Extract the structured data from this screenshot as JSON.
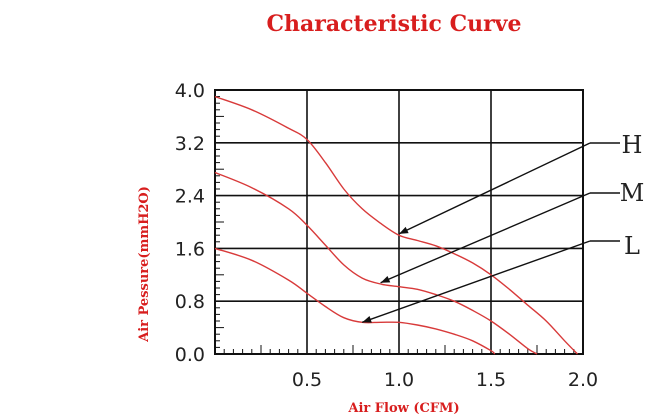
{
  "chart_data": {
    "type": "line",
    "title": "Characteristic Curve",
    "xlabel": "Air Flow (CFM)",
    "ylabel": "Air Pessure(mmH2O)",
    "xlim": [
      0,
      2.0
    ],
    "ylim": [
      0,
      4.0
    ],
    "x_ticks": [
      "0.5",
      "1.0",
      "1.5",
      "2.0"
    ],
    "y_ticks": [
      "0.0",
      "0.8",
      "1.6",
      "2.4",
      "3.2",
      "4.0"
    ],
    "grid": true,
    "series": [
      {
        "name": "H",
        "x": [
          0,
          0.2,
          0.4,
          0.5,
          0.6,
          0.7,
          0.8,
          0.9,
          1.0,
          1.1,
          1.2,
          1.3,
          1.4,
          1.5,
          1.6,
          1.7,
          1.8,
          1.9,
          1.97
        ],
        "y": [
          3.9,
          3.7,
          3.42,
          3.25,
          2.9,
          2.5,
          2.2,
          1.98,
          1.8,
          1.72,
          1.64,
          1.52,
          1.38,
          1.2,
          0.98,
          0.74,
          0.5,
          0.2,
          0.0
        ]
      },
      {
        "name": "M",
        "x": [
          0,
          0.2,
          0.4,
          0.5,
          0.6,
          0.7,
          0.8,
          0.9,
          1.0,
          1.1,
          1.2,
          1.3,
          1.4,
          1.5,
          1.6,
          1.7,
          1.75
        ],
        "y": [
          2.75,
          2.52,
          2.2,
          1.95,
          1.65,
          1.35,
          1.15,
          1.06,
          1.02,
          0.98,
          0.9,
          0.8,
          0.66,
          0.5,
          0.3,
          0.08,
          0.0
        ]
      },
      {
        "name": "L",
        "x": [
          0,
          0.2,
          0.4,
          0.5,
          0.6,
          0.7,
          0.8,
          0.9,
          1.0,
          1.1,
          1.2,
          1.3,
          1.4,
          1.5,
          1.52
        ],
        "y": [
          1.6,
          1.42,
          1.12,
          0.92,
          0.72,
          0.55,
          0.48,
          0.48,
          0.48,
          0.44,
          0.38,
          0.3,
          0.2,
          0.05,
          0.0
        ]
      }
    ],
    "callouts": [
      {
        "label": "H",
        "from": [
          1.0,
          1.82
        ]
      },
      {
        "label": "M",
        "from": [
          0.9,
          1.08
        ]
      },
      {
        "label": "L",
        "from": [
          0.8,
          0.48
        ]
      }
    ]
  }
}
